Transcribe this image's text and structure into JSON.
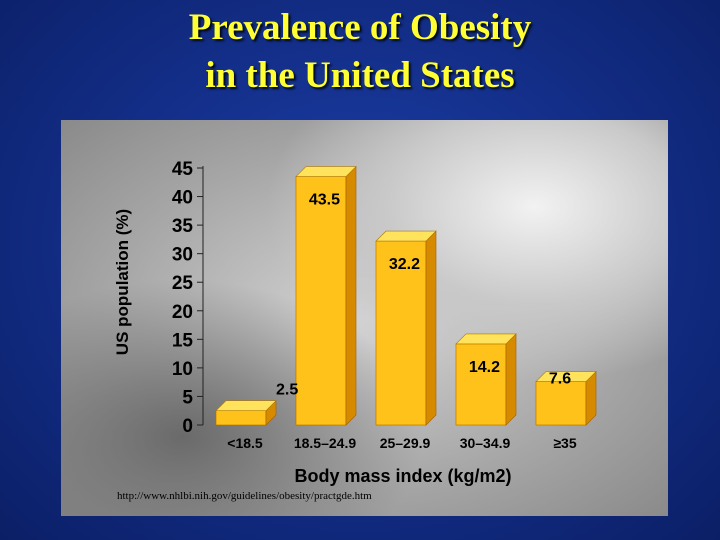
{
  "slide": {
    "title_line1": "Prevalence of Obesity",
    "title_line2": "in the United States",
    "source": "http://www.nhlbi.nih.gov/guidelines/obesity/practgde.htm"
  },
  "chart_data": {
    "type": "bar",
    "title": "",
    "xlabel": "Body mass index (kg/m2)",
    "ylabel": "US population (%)",
    "categories": [
      "<18.5",
      "18.5–24.9",
      "25–29.9",
      "30–34.9",
      "≥35"
    ],
    "values": [
      2.5,
      43.5,
      32.2,
      14.2,
      7.6
    ],
    "data_labels": [
      "2.5",
      "43.5",
      "32.2",
      "14.2",
      "7.6"
    ],
    "ylim": [
      0,
      45
    ],
    "yticks": [
      "0",
      "5",
      "10",
      "15",
      "20",
      "25",
      "30",
      "35",
      "40",
      "45"
    ],
    "grid": false,
    "legend": "none",
    "bar_color": "#ffc21a",
    "bar_side_color": "#d68a00",
    "bar_top_color": "#ffe35c"
  }
}
